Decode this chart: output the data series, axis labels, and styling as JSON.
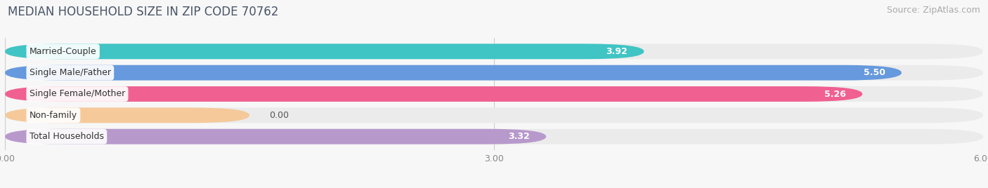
{
  "title": "MEDIAN HOUSEHOLD SIZE IN ZIP CODE 70762",
  "source": "Source: ZipAtlas.com",
  "categories": [
    "Married-Couple",
    "Single Male/Father",
    "Single Female/Mother",
    "Non-family",
    "Total Households"
  ],
  "values": [
    3.92,
    5.5,
    5.26,
    0.0,
    3.32
  ],
  "bar_colors": [
    "#40c4c4",
    "#6699dd",
    "#f06090",
    "#f5c99a",
    "#b899cc"
  ],
  "bar_background": "#ebebeb",
  "xlim": [
    0,
    6.0
  ],
  "xticks": [
    0.0,
    3.0,
    6.0
  ],
  "xtick_labels": [
    "0.00",
    "3.00",
    "6.00"
  ],
  "value_labels": [
    "3.92",
    "5.50",
    "5.26",
    "0.00",
    "3.32"
  ],
  "bg_color": "#f7f7f7",
  "title_fontsize": 12,
  "source_fontsize": 9,
  "label_fontsize": 9,
  "value_fontsize": 9,
  "bar_height": 0.72,
  "nonfamily_bar_width": 1.5
}
